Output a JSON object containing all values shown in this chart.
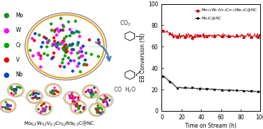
{
  "xlabel": "Time on Stream (h)",
  "ylabel": "EB Conversion (%)",
  "xlim": [
    0,
    100
  ],
  "ylim": [
    0,
    100
  ],
  "yticks": [
    0,
    20,
    40,
    60,
    80,
    100
  ],
  "xticks": [
    0,
    20,
    40,
    60,
    80,
    100
  ],
  "bg_color": "#ffffff",
  "red_color": "#cc0000",
  "black_color": "#111111",
  "red_seed": 42,
  "black_seed": 42,
  "red_base_start": 75,
  "red_base_stable": 70,
  "red_noise_std": 1.2,
  "black_start": 33,
  "black_mid": 22,
  "black_end": 18,
  "legend_items": [
    {
      "label": "Mo",
      "color": "#228B22"
    },
    {
      "label": "W",
      "color": "#FF00FF"
    },
    {
      "label": "Cr",
      "color": "#00AA00"
    },
    {
      "label": "V",
      "color": "#EE0000"
    },
    {
      "label": "Nb",
      "color": "#0044CC"
    }
  ],
  "atom_colors": [
    "#228B22",
    "#FF00FF",
    "#00AA00",
    "#EE0000",
    "#0044CC"
  ],
  "figure_width": 3.78,
  "figure_height": 1.86,
  "dpi": 100
}
